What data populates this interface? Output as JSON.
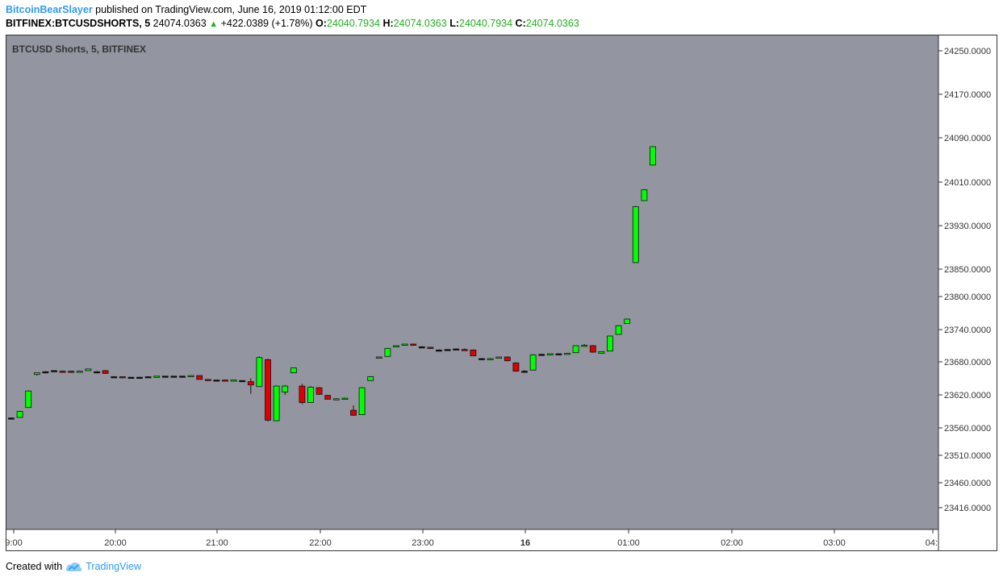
{
  "header": {
    "author": "BitcoinBearSlayer",
    "published_text": "published on TradingView.com, June 16, 2019 01:12:00 EDT",
    "symbol": "BITFINEX:BTCUSDSHORTS, 5",
    "last_price": "24074.0363",
    "change": "+422.0389 (+1.78%)",
    "open_label": "O:",
    "open": "24040.7934",
    "high_label": "H:",
    "high": "24074.0363",
    "low_label": "L:",
    "low": "24040.7934",
    "close_label": "C:",
    "close": "24074.0363"
  },
  "footer": {
    "created_with": "Created with",
    "brand": "TradingView",
    "logo_icon": "tradingview-cloud-icon"
  },
  "colors": {
    "plot_bg": "#9396a0",
    "up": "#00ff00",
    "down": "#e00000",
    "flat": "#111111"
  },
  "chart_data": {
    "type": "candlestick",
    "title": "BTCUSD Shorts, 5, BITFINEX",
    "interval": "5",
    "y_axis_ticks": [
      "24250.0000",
      "24170.0000",
      "24090.0000",
      "24010.0000",
      "23930.0000",
      "23850.0000",
      "23800.0000",
      "23740.0000",
      "23680.0000",
      "23620.0000",
      "23560.0000",
      "23510.0000",
      "23460.0000",
      "23416.0000"
    ],
    "x_axis_ticks": [
      "9:00",
      "20:00",
      "21:00",
      "22:00",
      "23:00",
      "16",
      "01:00",
      "02:00",
      "03:00",
      "04:"
    ],
    "candles": [
      {
        "t": "19:00",
        "o": 23578,
        "h": 23579,
        "l": 23576,
        "c": 23578
      },
      {
        "t": "19:05",
        "o": 23579,
        "h": 23591,
        "l": 23579,
        "c": 23590
      },
      {
        "t": "19:10",
        "o": 23597,
        "h": 23628,
        "l": 23597,
        "c": 23627
      },
      {
        "t": "19:15",
        "o": 23657,
        "h": 23660,
        "l": 23655,
        "c": 23660
      },
      {
        "t": "19:20",
        "o": 23662,
        "h": 23663,
        "l": 23661,
        "c": 23662
      },
      {
        "t": "19:25",
        "o": 23664,
        "h": 23665,
        "l": 23663,
        "c": 23664
      },
      {
        "t": "19:30",
        "o": 23663,
        "h": 23664,
        "l": 23661,
        "c": 23662
      },
      {
        "t": "19:35",
        "o": 23663,
        "h": 23663,
        "l": 23660,
        "c": 23661
      },
      {
        "t": "19:40",
        "o": 23661,
        "h": 23664,
        "l": 23661,
        "c": 23663
      },
      {
        "t": "19:45",
        "o": 23664,
        "h": 23667,
        "l": 23664,
        "c": 23667
      },
      {
        "t": "19:50",
        "o": 23662,
        "h": 23663,
        "l": 23661,
        "c": 23662
      },
      {
        "t": "19:55",
        "o": 23664,
        "h": 23665,
        "l": 23658,
        "c": 23659
      },
      {
        "t": "20:00",
        "o": 23653,
        "h": 23654,
        "l": 23652,
        "c": 23653
      },
      {
        "t": "20:05",
        "o": 23653,
        "h": 23653,
        "l": 23652,
        "c": 23652
      },
      {
        "t": "20:10",
        "o": 23652,
        "h": 23652,
        "l": 23651,
        "c": 23652
      },
      {
        "t": "20:15",
        "o": 23652,
        "h": 23653,
        "l": 23652,
        "c": 23652
      },
      {
        "t": "20:20",
        "o": 23653,
        "h": 23653,
        "l": 23652,
        "c": 23653
      },
      {
        "t": "20:25",
        "o": 23653,
        "h": 23654,
        "l": 23653,
        "c": 23654
      },
      {
        "t": "20:30",
        "o": 23654,
        "h": 23654,
        "l": 23653,
        "c": 23654
      },
      {
        "t": "20:35",
        "o": 23654,
        "h": 23654,
        "l": 23653,
        "c": 23654
      },
      {
        "t": "20:40",
        "o": 23654,
        "h": 23655,
        "l": 23654,
        "c": 23654
      },
      {
        "t": "20:45",
        "o": 23654,
        "h": 23655,
        "l": 23654,
        "c": 23655
      },
      {
        "t": "20:50",
        "o": 23655,
        "h": 23655,
        "l": 23648,
        "c": 23648
      },
      {
        "t": "20:55",
        "o": 23648,
        "h": 23648,
        "l": 23647,
        "c": 23647
      },
      {
        "t": "21:00",
        "o": 23647,
        "h": 23647,
        "l": 23646,
        "c": 23647
      },
      {
        "t": "21:05",
        "o": 23647,
        "h": 23647,
        "l": 23646,
        "c": 23646
      },
      {
        "t": "21:10",
        "o": 23646,
        "h": 23647,
        "l": 23646,
        "c": 23647
      },
      {
        "t": "21:15",
        "o": 23646,
        "h": 23646,
        "l": 23646,
        "c": 23646
      },
      {
        "t": "21:20",
        "o": 23644,
        "h": 23650,
        "l": 23622,
        "c": 23638
      },
      {
        "t": "21:25",
        "o": 23635,
        "h": 23690,
        "l": 23635,
        "c": 23688
      },
      {
        "t": "21:30",
        "o": 23684,
        "h": 23686,
        "l": 23572,
        "c": 23574
      },
      {
        "t": "21:35",
        "o": 23573,
        "h": 23637,
        "l": 23573,
        "c": 23636
      },
      {
        "t": "21:40",
        "o": 23625,
        "h": 23638,
        "l": 23620,
        "c": 23636
      },
      {
        "t": "21:45",
        "o": 23660,
        "h": 23669,
        "l": 23660,
        "c": 23669
      },
      {
        "t": "21:50",
        "o": 23636,
        "h": 23640,
        "l": 23603,
        "c": 23606
      },
      {
        "t": "21:55",
        "o": 23606,
        "h": 23636,
        "l": 23606,
        "c": 23634
      },
      {
        "t": "22:00",
        "o": 23633,
        "h": 23634,
        "l": 23620,
        "c": 23621
      },
      {
        "t": "22:05",
        "o": 23619,
        "h": 23620,
        "l": 23612,
        "c": 23612
      },
      {
        "t": "22:10",
        "o": 23612,
        "h": 23614,
        "l": 23612,
        "c": 23613
      },
      {
        "t": "22:15",
        "o": 23612,
        "h": 23615,
        "l": 23612,
        "c": 23614
      },
      {
        "t": "22:20",
        "o": 23592,
        "h": 23601,
        "l": 23582,
        "c": 23583
      },
      {
        "t": "22:25",
        "o": 23584,
        "h": 23634,
        "l": 23584,
        "c": 23633
      },
      {
        "t": "22:30",
        "o": 23646,
        "h": 23654,
        "l": 23646,
        "c": 23653
      },
      {
        "t": "22:35",
        "o": 23688,
        "h": 23690,
        "l": 23688,
        "c": 23689
      },
      {
        "t": "22:40",
        "o": 23690,
        "h": 23706,
        "l": 23690,
        "c": 23705
      },
      {
        "t": "22:45",
        "o": 23709,
        "h": 23710,
        "l": 23709,
        "c": 23710
      },
      {
        "t": "22:50",
        "o": 23712,
        "h": 23713,
        "l": 23711,
        "c": 23713
      },
      {
        "t": "22:55",
        "o": 23713,
        "h": 23714,
        "l": 23710,
        "c": 23711
      },
      {
        "t": "23:00",
        "o": 23708,
        "h": 23709,
        "l": 23707,
        "c": 23708
      },
      {
        "t": "23:05",
        "o": 23707,
        "h": 23708,
        "l": 23705,
        "c": 23705
      },
      {
        "t": "23:10",
        "o": 23702,
        "h": 23703,
        "l": 23701,
        "c": 23702
      },
      {
        "t": "23:15",
        "o": 23703,
        "h": 23703,
        "l": 23702,
        "c": 23703
      },
      {
        "t": "23:20",
        "o": 23704,
        "h": 23705,
        "l": 23704,
        "c": 23704
      },
      {
        "t": "23:25",
        "o": 23703,
        "h": 23705,
        "l": 23701,
        "c": 23701
      },
      {
        "t": "23:30",
        "o": 23702,
        "h": 23703,
        "l": 23691,
        "c": 23691
      },
      {
        "t": "23:35",
        "o": 23686,
        "h": 23687,
        "l": 23685,
        "c": 23686
      },
      {
        "t": "23:40",
        "o": 23685,
        "h": 23687,
        "l": 23685,
        "c": 23686
      },
      {
        "t": "23:45",
        "o": 23687,
        "h": 23689,
        "l": 23687,
        "c": 23689
      },
      {
        "t": "23:50",
        "o": 23689,
        "h": 23690,
        "l": 23681,
        "c": 23682
      },
      {
        "t": "23:55",
        "o": 23678,
        "h": 23679,
        "l": 23662,
        "c": 23663
      },
      {
        "t": "00:00",
        "o": 23663,
        "h": 23665,
        "l": 23661,
        "c": 23663
      },
      {
        "t": "00:05",
        "o": 23665,
        "h": 23694,
        "l": 23665,
        "c": 23693
      },
      {
        "t": "00:10",
        "o": 23694,
        "h": 23695,
        "l": 23693,
        "c": 23694
      },
      {
        "t": "00:15",
        "o": 23694,
        "h": 23695,
        "l": 23694,
        "c": 23695
      },
      {
        "t": "00:20",
        "o": 23695,
        "h": 23695,
        "l": 23694,
        "c": 23695
      },
      {
        "t": "00:25",
        "o": 23695,
        "h": 23696,
        "l": 23695,
        "c": 23696
      },
      {
        "t": "00:30",
        "o": 23697,
        "h": 23710,
        "l": 23697,
        "c": 23710
      },
      {
        "t": "00:35",
        "o": 23710,
        "h": 23713,
        "l": 23708,
        "c": 23711
      },
      {
        "t": "00:40",
        "o": 23710,
        "h": 23711,
        "l": 23697,
        "c": 23698
      },
      {
        "t": "00:45",
        "o": 23696,
        "h": 23699,
        "l": 23696,
        "c": 23699
      },
      {
        "t": "00:50",
        "o": 23700,
        "h": 23729,
        "l": 23700,
        "c": 23728
      },
      {
        "t": "00:55",
        "o": 23731,
        "h": 23748,
        "l": 23731,
        "c": 23747
      },
      {
        "t": "01:00",
        "o": 23751,
        "h": 23760,
        "l": 23751,
        "c": 23759
      },
      {
        "t": "01:05",
        "o": 23862,
        "h": 23966,
        "l": 23862,
        "c": 23965
      },
      {
        "t": "01:10",
        "o": 23976,
        "h": 23997,
        "l": 23976,
        "c": 23996
      },
      {
        "t": "01:15",
        "o": 24040.7934,
        "h": 24074.0363,
        "l": 24040.7934,
        "c": 24074.0363
      }
    ]
  }
}
